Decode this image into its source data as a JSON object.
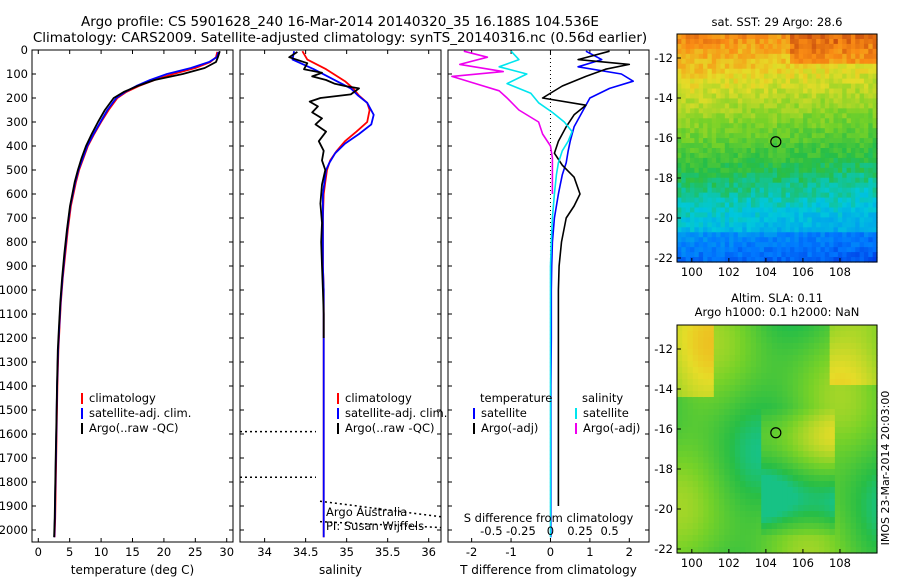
{
  "figure": {
    "title_line1": "Argo profile: CS 5901628_240 16-Mar-2014 20140320_35 16.188S 104.536E",
    "title_line2": "Climatology: CARS2009. Satellite-adjusted climatology: synTS_20140316.nc (0.56d earlier)",
    "side_label": "IMOS 23-Mar-2014 20:03:00",
    "colors": {
      "climatology": "#ff0000",
      "satellite": "#0000ff",
      "argo": "#000000",
      "sat_salinity": "#00e5ee",
      "argo_salinity": "#ee00ee"
    }
  },
  "chart_data": [
    {
      "id": "temperature",
      "type": "line",
      "xlabel": "temperature (deg C)",
      "xlim": [
        -1,
        31
      ],
      "xticks": [
        0,
        5,
        10,
        15,
        20,
        25,
        30
      ],
      "xtick_labels": [
        "0",
        "5",
        "10",
        "15",
        "20",
        "25",
        "30"
      ],
      "ylim": [
        0,
        2050
      ],
      "yticks": [
        0,
        100,
        200,
        300,
        400,
        500,
        600,
        700,
        800,
        900,
        1000,
        1100,
        1200,
        1300,
        1400,
        1500,
        1600,
        1700,
        1800,
        1900,
        2000
      ],
      "ytick_labels": [
        "0",
        "100",
        "200",
        "300",
        "400",
        "500",
        "600",
        "700",
        "800",
        "900",
        "1000",
        "1100",
        "1200",
        "1300",
        "1400",
        "1500",
        "1600",
        "1700",
        "1800",
        "1900",
        "2000"
      ],
      "y_inverted": true,
      "legend": {
        "position": "center-right",
        "entries": [
          "climatology",
          "satellite-adj. clim.",
          "Argo(..raw -QC)"
        ]
      },
      "series": [
        {
          "name": "climatology",
          "color": "#ff0000",
          "x": [
            28.5,
            28.3,
            27.4,
            25,
            21.5,
            18.5,
            16,
            14,
            12.6,
            11.2,
            10,
            8.9,
            7.9,
            7.2,
            6.5,
            6,
            5.2,
            4.7,
            4.3,
            3.9,
            3.6,
            3.4,
            3.2,
            3.05,
            2.95,
            2.85,
            2.75,
            2.7,
            2.6
          ],
          "y": [
            8,
            30,
            50,
            75,
            100,
            125,
            150,
            175,
            200,
            250,
            300,
            350,
            400,
            450,
            500,
            550,
            650,
            750,
            850,
            950,
            1050,
            1150,
            1250,
            1400,
            1550,
            1700,
            1850,
            1950,
            2030
          ]
        },
        {
          "name": "satellite-adj. clim.",
          "color": "#0000ff",
          "x": [
            28.7,
            28.4,
            27.2,
            24.3,
            20.5,
            17.8,
            15.6,
            13.8,
            12.4,
            11,
            9.9,
            8.8,
            7.8,
            7.1,
            6.4,
            5.9,
            5.1,
            4.6,
            4.2,
            3.85,
            3.55,
            3.35,
            3.15,
            3,
            2.9,
            2.8,
            2.7,
            2.65,
            2.55
          ],
          "y": [
            8,
            30,
            50,
            75,
            100,
            125,
            150,
            175,
            200,
            250,
            300,
            350,
            400,
            450,
            500,
            550,
            650,
            750,
            850,
            950,
            1050,
            1150,
            1250,
            1400,
            1550,
            1700,
            1850,
            1950,
            2030
          ]
        },
        {
          "name": "Argo(..raw -QC)",
          "color": "#000000",
          "x": [
            28.9,
            28.6,
            28.3,
            26.5,
            23,
            18.5,
            15.8,
            13.6,
            12,
            10.6,
            9.5,
            8.5,
            7.6,
            6.9,
            6.3,
            5.8,
            5.05,
            4.55,
            4.15,
            3.8,
            3.5,
            3.3,
            3.1,
            2.98,
            2.88,
            2.78,
            2.68,
            2.62,
            2.52
          ],
          "y": [
            5,
            30,
            50,
            75,
            100,
            125,
            150,
            175,
            200,
            250,
            300,
            350,
            400,
            450,
            500,
            550,
            650,
            750,
            850,
            950,
            1050,
            1150,
            1250,
            1400,
            1550,
            1700,
            1850,
            1950,
            2030
          ]
        }
      ]
    },
    {
      "id": "salinity",
      "type": "line",
      "xlabel": "salinity",
      "xlim": [
        33.7,
        36.15
      ],
      "xticks": [
        34,
        34.5,
        35,
        35.5,
        36
      ],
      "xtick_labels": [
        "34",
        "34.5",
        "35",
        "35.5",
        "36"
      ],
      "ylim": [
        0,
        2050
      ],
      "y_inverted": true,
      "legend": {
        "position": "center-right",
        "entries": [
          "climatology",
          "satellite-adj. clim.",
          "Argo(..raw -QC)"
        ]
      },
      "annotations": [
        "Argo Australia",
        "PI: Susan Wijffels"
      ],
      "series": [
        {
          "name": "climatology",
          "color": "#ff0000",
          "x": [
            34.46,
            34.52,
            34.75,
            34.98,
            35.08,
            35.15,
            35.25,
            35.28,
            35.25,
            35.12,
            34.98,
            34.88,
            34.8,
            34.76,
            34.74,
            34.72,
            34.71,
            34.71,
            34.71,
            34.72,
            34.72,
            34.72,
            34.72,
            34.72,
            34.72,
            34.72,
            34.72,
            34.72
          ],
          "y": [
            5,
            40,
            80,
            130,
            160,
            190,
            220,
            250,
            300,
            340,
            380,
            420,
            460,
            500,
            550,
            600,
            700,
            800,
            900,
            1000,
            1200,
            1400,
            1600,
            1800,
            1900,
            1950,
            2000,
            2030
          ]
        },
        {
          "name": "satellite-adj. clim.",
          "color": "#0000ff",
          "x": [
            34.36,
            34.34,
            34.6,
            34.88,
            35.05,
            35.14,
            35.25,
            35.33,
            35.3,
            35.15,
            34.98,
            34.86,
            34.79,
            34.75,
            34.73,
            34.71,
            34.71,
            34.71,
            34.71,
            34.72,
            34.72,
            34.72,
            34.72,
            34.72,
            34.72,
            34.72,
            34.72,
            34.72
          ],
          "y": [
            5,
            40,
            80,
            130,
            160,
            190,
            220,
            270,
            310,
            350,
            390,
            430,
            470,
            500,
            550,
            600,
            700,
            800,
            900,
            1000,
            1200,
            1400,
            1600,
            1800,
            1900,
            1950,
            2000,
            2030
          ]
        },
        {
          "name": "Argo(..raw -QC)",
          "color": "#000000",
          "x": [
            34.4,
            34.3,
            34.52,
            34.48,
            34.7,
            34.58,
            34.75,
            34.85,
            34.98,
            35.15,
            35.05,
            34.68,
            34.55,
            34.65,
            34.58,
            34.7,
            34.62,
            34.75,
            34.66,
            34.72,
            34.7,
            34.74,
            34.7,
            34.68,
            34.7,
            34.69,
            34.7,
            34.71,
            34.72,
            34.72
          ],
          "y": [
            8,
            30,
            55,
            80,
            95,
            110,
            125,
            140,
            150,
            160,
            185,
            200,
            215,
            235,
            260,
            285,
            310,
            340,
            380,
            420,
            460,
            500,
            560,
            640,
            720,
            800,
            900,
            1000,
            1100,
            1200
          ]
        }
      ]
    },
    {
      "id": "difference",
      "type": "line",
      "xlabel": "T difference from climatology",
      "xlabel_top": "S difference from climatology",
      "xlim": [
        -2.6,
        2.5
      ],
      "xticks": [
        -2,
        -1,
        0,
        1,
        2
      ],
      "xtick_labels": [
        "-2",
        "-1",
        "0",
        "1",
        "2"
      ],
      "sticks": [
        -1.5,
        -0.75,
        0.75,
        1.5
      ],
      "stick_labels": [
        "-0.5",
        "-0.25",
        "0.25",
        "0.5"
      ],
      "ylim": [
        0,
        2050
      ],
      "y_inverted": true,
      "legend": {
        "position": "center",
        "headers": [
          "temperature",
          "salinity"
        ],
        "entries": [
          "satellite",
          "Argo(-adj)",
          "satellite",
          "Argo(-adj)"
        ]
      },
      "series": [
        {
          "name": "satellite",
          "color": "#0000ff",
          "x": [
            0.9,
            1.3,
            0.7,
            1.8,
            2.1,
            1.5,
            1.0,
            0.8,
            0.6,
            0.5,
            0.45,
            0.4,
            0.3,
            0.25,
            0.2,
            0.15,
            0.1,
            0.05,
            0.03,
            0.02,
            0.02,
            0.01,
            0.01,
            0.01,
            0.01,
            0.01
          ],
          "y": [
            5,
            40,
            70,
            100,
            130,
            160,
            200,
            260,
            320,
            380,
            420,
            470,
            520,
            560,
            600,
            650,
            700,
            800,
            900,
            1000,
            1200,
            1400,
            1600,
            1800,
            1900,
            2030
          ]
        },
        {
          "name": "Argo(-adj)",
          "color": "#000000",
          "x": [
            1.5,
            0.7,
            2.0,
            1.4,
            0.9,
            0.3,
            -0.2,
            0.9,
            0.6,
            0.4,
            0.2,
            0.1,
            0.3,
            0.6,
            0.75,
            0.6,
            0.4,
            0.28,
            0.22,
            0.2,
            0.2,
            0.2,
            0.2,
            0.2,
            0.2,
            0.2
          ],
          "y": [
            5,
            40,
            60,
            80,
            110,
            150,
            200,
            230,
            270,
            320,
            380,
            430,
            480,
            530,
            600,
            650,
            700,
            800,
            900,
            1000,
            1200,
            1400,
            1600,
            1700,
            1800,
            1900
          ]
        },
        {
          "name": "satellite",
          "color": "#00e5ee",
          "x": [
            -1.0,
            -0.8,
            -1.3,
            -0.6,
            -1.1,
            -0.5,
            -0.3,
            0.05,
            0.35,
            0.55,
            0.45,
            0.3,
            0.2,
            0.15,
            0.1,
            0.05,
            0.02,
            0.0,
            0.0,
            0.0,
            0.0,
            0.0,
            0.0,
            0.0,
            0.0,
            0.0
          ],
          "y": [
            5,
            40,
            70,
            100,
            140,
            180,
            220,
            260,
            300,
            340,
            380,
            420,
            470,
            520,
            600,
            700,
            800,
            900,
            1000,
            1200,
            1400,
            1600,
            1800,
            1900,
            2000,
            2030
          ]
        },
        {
          "name": "Argo(-adj)",
          "color": "#ee00ee",
          "x": [
            -2.2,
            -1.6,
            -2.3,
            -1.2,
            -2.5,
            -1.9,
            -1.3,
            -1.1,
            -0.8,
            -0.3,
            -0.2,
            0.0,
            0.05,
            0.05,
            0.05,
            0.05
          ],
          "y": [
            5,
            30,
            60,
            90,
            110,
            140,
            170,
            200,
            250,
            300,
            350,
            400,
            450,
            500,
            550,
            600
          ]
        }
      ]
    },
    {
      "id": "sst-map",
      "type": "heatmap",
      "title": "sat. SST: 29 Argo: 28.6",
      "xlim": [
        99.2,
        110
      ],
      "ylim": [
        -22.2,
        -10.8
      ],
      "xticks": [
        100,
        102,
        104,
        106,
        108
      ],
      "xtick_labels": [
        "100",
        "102",
        "104",
        "106",
        "108"
      ],
      "yticks": [
        -12,
        -14,
        -16,
        -18,
        -20,
        -22
      ],
      "ytick_labels": [
        "-12",
        "-14",
        "-16",
        "-18",
        "-20",
        "-22"
      ],
      "marker": [
        104.536,
        -16.188
      ]
    },
    {
      "id": "sla-map",
      "type": "heatmap",
      "title": "Altim. SLA: 0.11",
      "subtitle": "Argo h1000: 0.1 h2000: NaN",
      "xlim": [
        99.2,
        110
      ],
      "ylim": [
        -22.2,
        -10.8
      ],
      "xticks": [
        100,
        102,
        104,
        106,
        108
      ],
      "xtick_labels": [
        "100",
        "102",
        "104",
        "106",
        "108"
      ],
      "yticks": [
        -12,
        -14,
        -16,
        -18,
        -20,
        -22
      ],
      "ytick_labels": [
        "-12",
        "-14",
        "-16",
        "-18",
        "-20",
        "-22"
      ],
      "marker": [
        104.536,
        -16.188
      ]
    }
  ]
}
